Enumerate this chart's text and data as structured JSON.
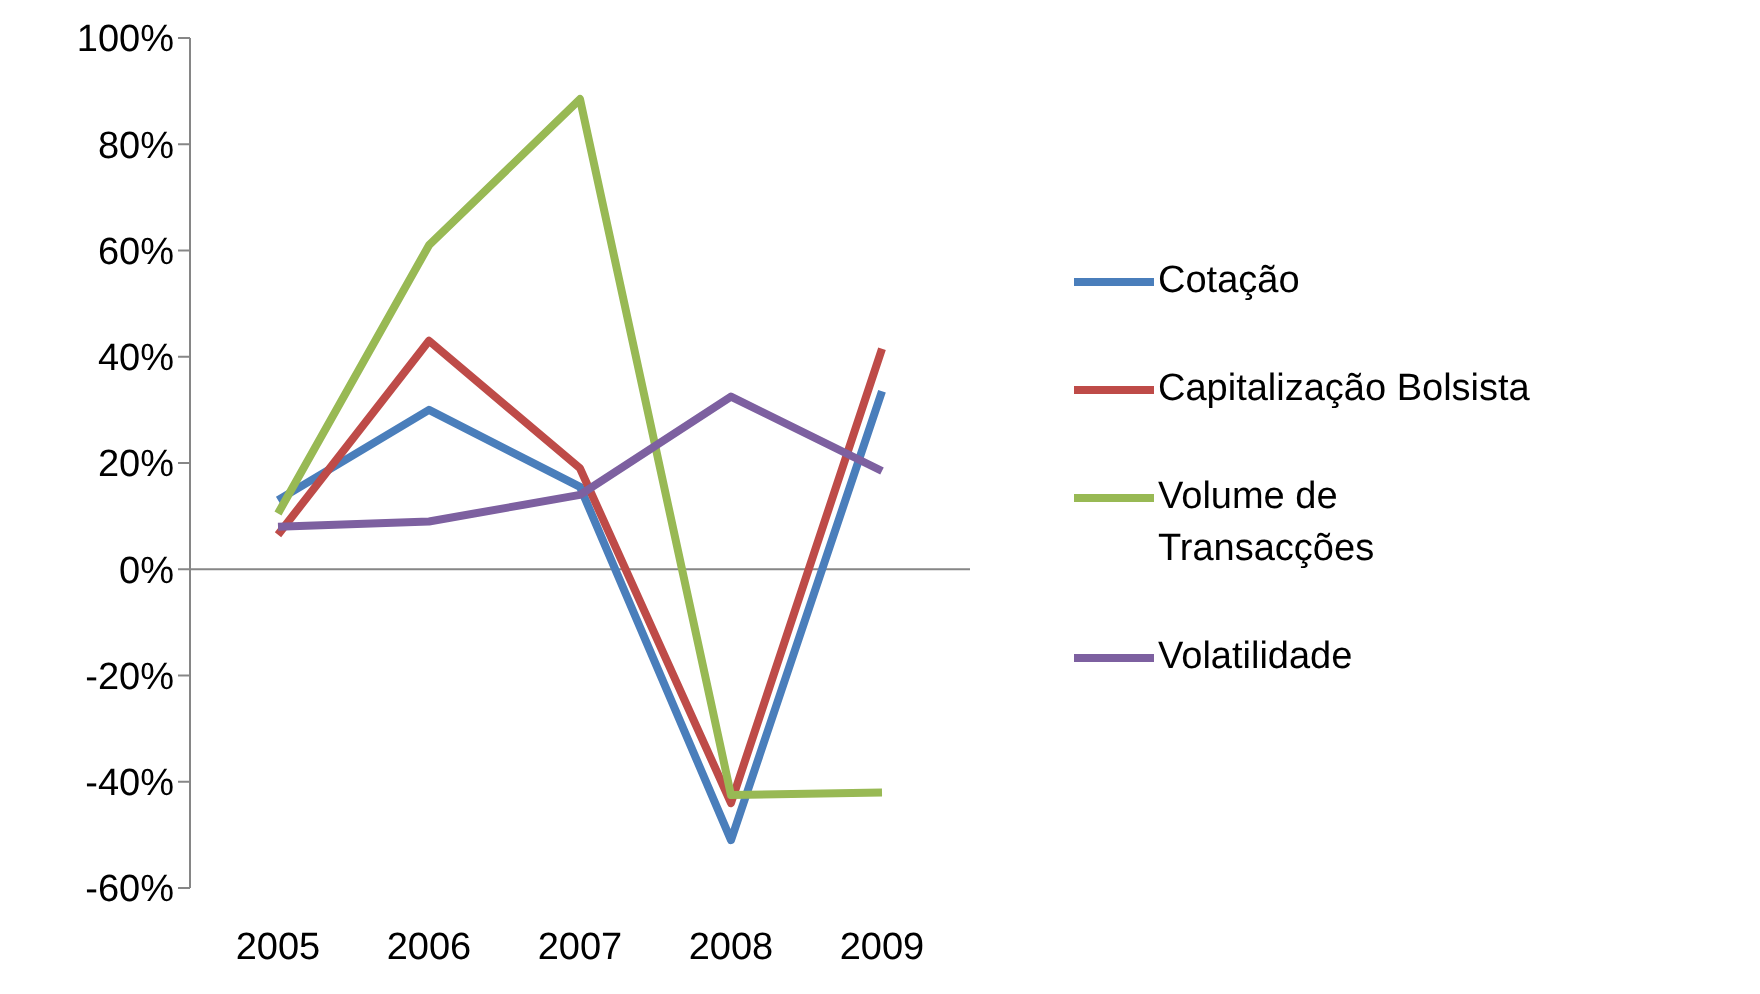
{
  "chart_data": {
    "type": "line",
    "categories": [
      "2005",
      "2006",
      "2007",
      "2008",
      "2009"
    ],
    "series": [
      {
        "name": "Cotação",
        "color": "#4a7ebb",
        "values": [
          13,
          30,
          15.5,
          -51,
          33.5
        ]
      },
      {
        "name": "Capitalização Bolsista",
        "color": "#be4b48",
        "values": [
          6.5,
          43,
          19,
          -44,
          41.5
        ]
      },
      {
        "name": "Volume de Transacções",
        "color": "#98b954",
        "values": [
          10.5,
          61,
          88.5,
          -42.5,
          -42
        ]
      },
      {
        "name": "Volatilidade",
        "color": "#7d60a0",
        "values": [
          8,
          9,
          14,
          32.5,
          18.5
        ]
      }
    ],
    "ylim": [
      -60,
      100
    ],
    "yticks": [
      {
        "value": -60,
        "label": "-60%"
      },
      {
        "value": -40,
        "label": "-40%"
      },
      {
        "value": -20,
        "label": "-20%"
      },
      {
        "value": 0,
        "label": "0%"
      },
      {
        "value": 20,
        "label": "20%"
      },
      {
        "value": 40,
        "label": "40%"
      },
      {
        "value": 60,
        "label": "60%"
      },
      {
        "value": 80,
        "label": "80%"
      },
      {
        "value": 100,
        "label": "100%"
      }
    ],
    "legend": "right",
    "marker": "none",
    "line_style": "solid"
  }
}
